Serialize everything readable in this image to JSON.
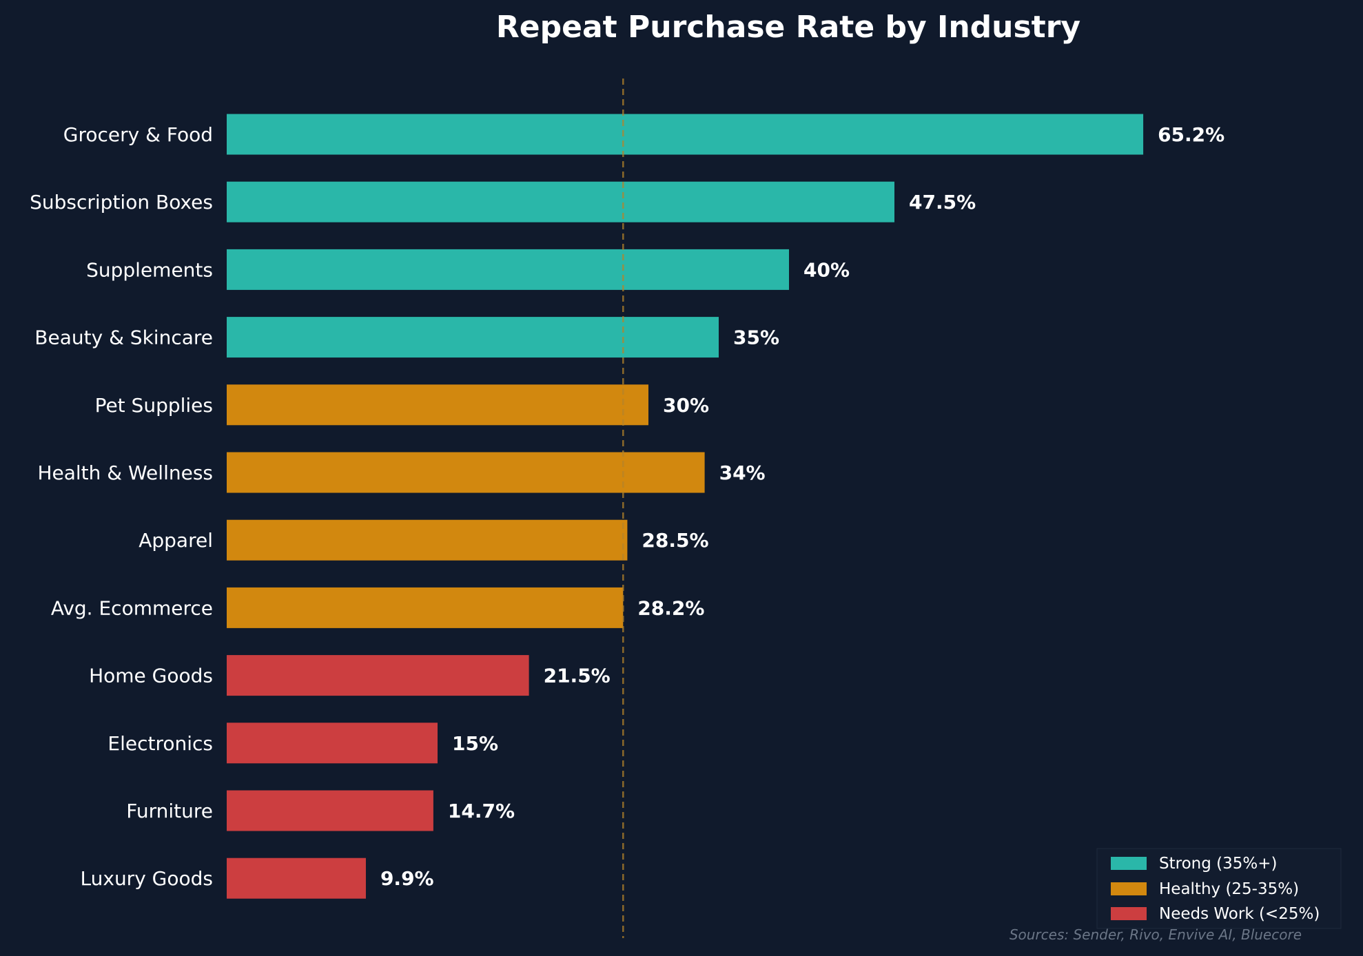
{
  "chart_data": {
    "type": "bar",
    "orientation": "horizontal",
    "title": "Repeat Purchase Rate by Industry",
    "xlabel": "",
    "ylabel": "",
    "xlim": [
      0,
      75
    ],
    "categories": [
      "Grocery & Food",
      "Subscription Boxes",
      "Supplements",
      "Beauty & Skincare",
      "Pet Supplies",
      "Health & Wellness",
      "Apparel",
      "Avg. Ecommerce",
      "Home Goods",
      "Electronics",
      "Furniture",
      "Luxury Goods"
    ],
    "values": [
      65.2,
      47.5,
      40,
      35,
      30,
      34,
      28.5,
      28.2,
      21.5,
      15,
      14.7,
      9.9
    ],
    "value_labels": [
      "65.2%",
      "47.5%",
      "40%",
      "35%",
      "30%",
      "34%",
      "28.5%",
      "28.2%",
      "21.5%",
      "15%",
      "14.7%",
      "9.9%"
    ],
    "tier": [
      "strong",
      "strong",
      "strong",
      "strong",
      "healthy",
      "healthy",
      "healthy",
      "healthy",
      "needs",
      "needs",
      "needs",
      "needs"
    ],
    "reference_line": {
      "value": 28.2,
      "style": "dashed",
      "color": "#b5842a"
    },
    "legend": {
      "position": "bottom-right",
      "entries": [
        {
          "key": "strong",
          "label": "Strong (35%+)",
          "color": "#2ab7a9"
        },
        {
          "key": "healthy",
          "label": "Healthy (25-35%)",
          "color": "#d2880f"
        },
        {
          "key": "needs",
          "label": "Needs Work (<25%)",
          "color": "#cc3e40"
        }
      ]
    },
    "grid": false,
    "source_note": "Sources: Sender, Rivo, Envive AI, Bluecore"
  },
  "colors": {
    "background": "#101a2c",
    "text": "#ffffff",
    "muted": "#6b7687"
  }
}
